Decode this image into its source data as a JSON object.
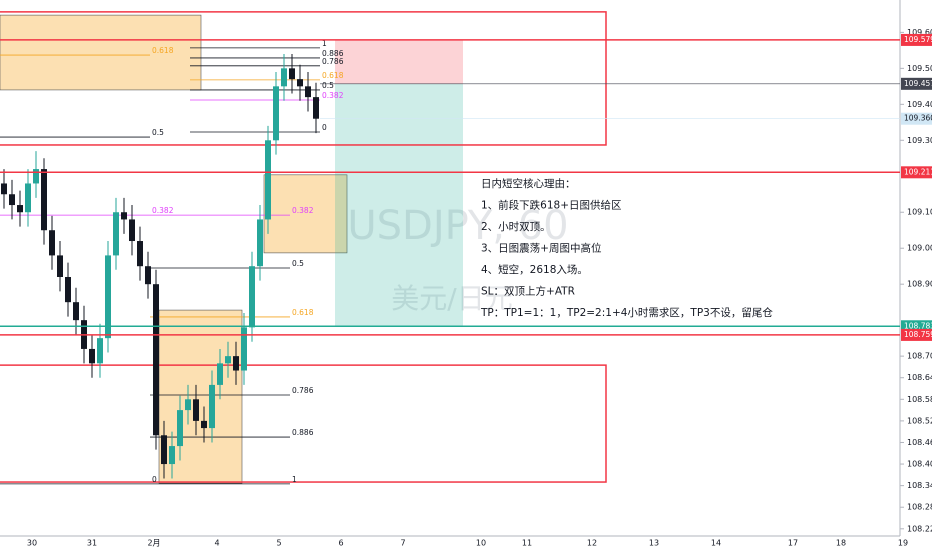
{
  "chart_data": {
    "type": "candlestick",
    "watermark": "USDJPY, 60",
    "watermark_sub": "美元/日元",
    "ylim": [
      108.2,
      109.69
    ],
    "yticks": [
      {
        "value": 109.6,
        "label": "109.600"
      },
      {
        "value": 109.5,
        "label": "109.500"
      },
      {
        "value": 109.4,
        "label": "109.400"
      },
      {
        "value": 109.3,
        "label": "109.300"
      },
      {
        "value": 109.1,
        "label": "109.100"
      },
      {
        "value": 109.0,
        "label": "109.000"
      },
      {
        "value": 108.9,
        "label": "108.900"
      },
      {
        "value": 108.7,
        "label": "108.700"
      },
      {
        "value": 108.64,
        "label": "108.640"
      },
      {
        "value": 108.58,
        "label": "108.580"
      },
      {
        "value": 108.52,
        "label": "108.520"
      },
      {
        "value": 108.46,
        "label": "108.460"
      },
      {
        "value": 108.4,
        "label": "108.400"
      },
      {
        "value": 108.34,
        "label": "108.340"
      },
      {
        "value": 108.28,
        "label": "108.280"
      },
      {
        "value": 108.22,
        "label": "108.220"
      }
    ],
    "x_labels": [
      "30",
      "31",
      "2月",
      "4",
      "5",
      "6",
      "7",
      "10",
      "11",
      "12",
      "13",
      "14",
      "17",
      "18",
      "19"
    ],
    "up_color": "#26a69a",
    "down_color": "#131722",
    "open": [
      109.18,
      109.15,
      109.12,
      109.1,
      109.18,
      109.22,
      109.05,
      108.98,
      108.92,
      108.85,
      108.8,
      108.72,
      108.68,
      108.75,
      108.98,
      109.1,
      109.08,
      109.02,
      108.95,
      108.9,
      108.48,
      108.4,
      108.45,
      108.55,
      108.58,
      108.52,
      108.5,
      108.62,
      108.68,
      108.7,
      108.66,
      108.78,
      108.95,
      109.08,
      109.3,
      109.45,
      109.5,
      109.47,
      109.45,
      109.42
    ],
    "high": [
      109.22,
      109.19,
      109.16,
      109.22,
      109.27,
      109.25,
      109.09,
      109.02,
      108.96,
      108.89,
      108.84,
      108.76,
      108.79,
      109.02,
      109.14,
      109.14,
      109.12,
      109.06,
      108.99,
      108.94,
      108.52,
      108.49,
      108.59,
      108.62,
      108.62,
      108.56,
      108.66,
      108.72,
      108.74,
      108.74,
      108.82,
      108.99,
      109.12,
      109.34,
      109.49,
      109.54,
      109.54,
      109.51,
      109.49,
      109.46
    ],
    "low": [
      109.11,
      109.08,
      109.06,
      109.06,
      109.14,
      109.01,
      108.94,
      108.88,
      108.81,
      108.76,
      108.68,
      108.64,
      108.64,
      108.71,
      108.94,
      109.04,
      108.98,
      108.91,
      108.86,
      108.44,
      108.36,
      108.36,
      108.41,
      108.51,
      108.48,
      108.46,
      108.46,
      108.58,
      108.64,
      108.62,
      108.62,
      108.74,
      108.91,
      109.04,
      109.26,
      109.41,
      109.43,
      109.41,
      109.38,
      109.32
    ],
    "close": [
      109.15,
      109.12,
      109.1,
      109.18,
      109.22,
      109.05,
      108.98,
      108.92,
      108.85,
      108.8,
      108.72,
      108.68,
      108.75,
      108.98,
      109.1,
      109.08,
      109.02,
      108.95,
      108.9,
      108.48,
      108.4,
      108.45,
      108.55,
      108.58,
      108.52,
      108.5,
      108.62,
      108.68,
      108.7,
      108.66,
      108.78,
      108.95,
      109.08,
      109.3,
      109.45,
      109.5,
      109.47,
      109.45,
      109.42,
      109.36
    ],
    "price_tags": [
      {
        "value": 109.579,
        "label": "109.579",
        "color": "#f23645"
      },
      {
        "value": 109.457,
        "label": "109.457",
        "color": "#434651"
      },
      {
        "value": 109.36,
        "label": "109.360",
        "color": "#d1e7f5"
      },
      {
        "value": 109.211,
        "label": "109.211",
        "color": "#f23645"
      },
      {
        "value": 108.783,
        "label": "108.783",
        "color": "#22ab94"
      },
      {
        "value": 108.759,
        "label": "108.759",
        "color": "#f23645"
      }
    ],
    "zones": [
      {
        "top": 109.657,
        "bottom": 109.287,
        "color": "#f23645"
      },
      {
        "top": 108.675,
        "bottom": 108.35,
        "color": "#f23645"
      }
    ],
    "boxes": [
      {
        "top": 109.648,
        "bottom": 109.44,
        "color": "#f5a623"
      },
      {
        "top": 109.204,
        "bottom": 108.987,
        "color": "#f5a623"
      },
      {
        "top": 108.828,
        "bottom": 108.347,
        "color": "#f5a623"
      }
    ],
    "position": {
      "stop": 109.579,
      "entry": 109.457,
      "target": 108.783
    },
    "fibs": [
      {
        "levels": [
          {
            "label": "0.618",
            "price": 109.537,
            "color": "#f5a623"
          },
          {
            "label": "0.5",
            "price": 109.309,
            "color": "#131722"
          },
          {
            "label": "0.382",
            "price": 109.092,
            "color": "#e040fb"
          },
          {
            "label": "0",
            "price": 108.345,
            "color": "#131722"
          }
        ]
      },
      {
        "levels": [
          {
            "label": "0.382",
            "price": 109.092,
            "color": "#e040fb"
          },
          {
            "label": "0.5",
            "price": 108.945,
            "color": "#131722"
          },
          {
            "label": "0.618",
            "price": 108.809,
            "color": "#f5a623"
          },
          {
            "label": "0.786",
            "price": 108.592,
            "color": "#131722"
          },
          {
            "label": "0.886",
            "price": 108.475,
            "color": "#131722"
          },
          {
            "label": "1",
            "price": 108.345,
            "color": "#131722"
          }
        ]
      },
      {
        "levels": [
          {
            "label": "1",
            "price": 109.557,
            "color": "#131722"
          },
          {
            "label": "0.886",
            "price": 109.529,
            "color": "#131722"
          },
          {
            "label": "0.786",
            "price": 109.507,
            "color": "#131722"
          },
          {
            "label": "0.618",
            "price": 109.468,
            "color": "#f5a623"
          },
          {
            "label": "0.5",
            "price": 109.44,
            "color": "#131722"
          },
          {
            "label": "0.382",
            "price": 109.412,
            "color": "#e040fb"
          },
          {
            "label": "0",
            "price": 109.323,
            "color": "#131722"
          }
        ]
      }
    ],
    "notes": [
      "日内短空核心理由：",
      "1、前段下跌618+日图供给区",
      "2、小时双顶。",
      "3、日图震荡+周图中高位",
      "4、短空，2618入场。",
      "SL：双顶上方+ATR",
      "TP：TP1=1：1，TP2=2:1+4小时需求区，TP3不设，留尾仓"
    ]
  }
}
